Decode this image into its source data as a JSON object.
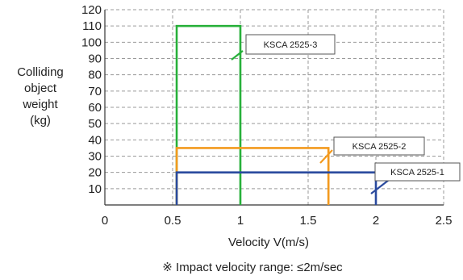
{
  "chart_data": {
    "type": "line",
    "title": "",
    "ylabel_lines": [
      "Colliding",
      "object",
      "weight",
      "(kg)"
    ],
    "xlabel": "Velocity  V(m/s)",
    "note": "※ Impact velocity range: ≤2m/sec",
    "xlim": [
      0,
      2.5
    ],
    "ylim": [
      0,
      120
    ],
    "x_ticks": [
      0,
      0.5,
      1,
      1.5,
      2,
      2.5
    ],
    "x_tick_labels": [
      "0",
      "0.5",
      "1",
      "1.5",
      "2",
      "2.5"
    ],
    "y_ticks": [
      10,
      20,
      30,
      40,
      50,
      60,
      70,
      80,
      90,
      100,
      110,
      120
    ],
    "y_tick_labels": [
      "10",
      "20",
      "30",
      "40",
      "50",
      "60",
      "70",
      "80",
      "90",
      "100",
      "110",
      "120"
    ],
    "grid": true,
    "series": [
      {
        "name": "KSCA 2525-3",
        "color": "#27b03a",
        "x": [
          0.53,
          0.53,
          1.0,
          1.0
        ],
        "y": [
          0,
          110,
          110,
          0
        ]
      },
      {
        "name": "KSCA 2525-2",
        "color": "#f39a1e",
        "x": [
          0.53,
          0.53,
          1.65,
          1.65
        ],
        "y": [
          0,
          35,
          35,
          0
        ]
      },
      {
        "name": "KSCA 2525-1",
        "color": "#2a4a9e",
        "x": [
          0.53,
          0.53,
          2.0,
          2.0
        ],
        "y": [
          0,
          20,
          20,
          0
        ]
      }
    ]
  }
}
